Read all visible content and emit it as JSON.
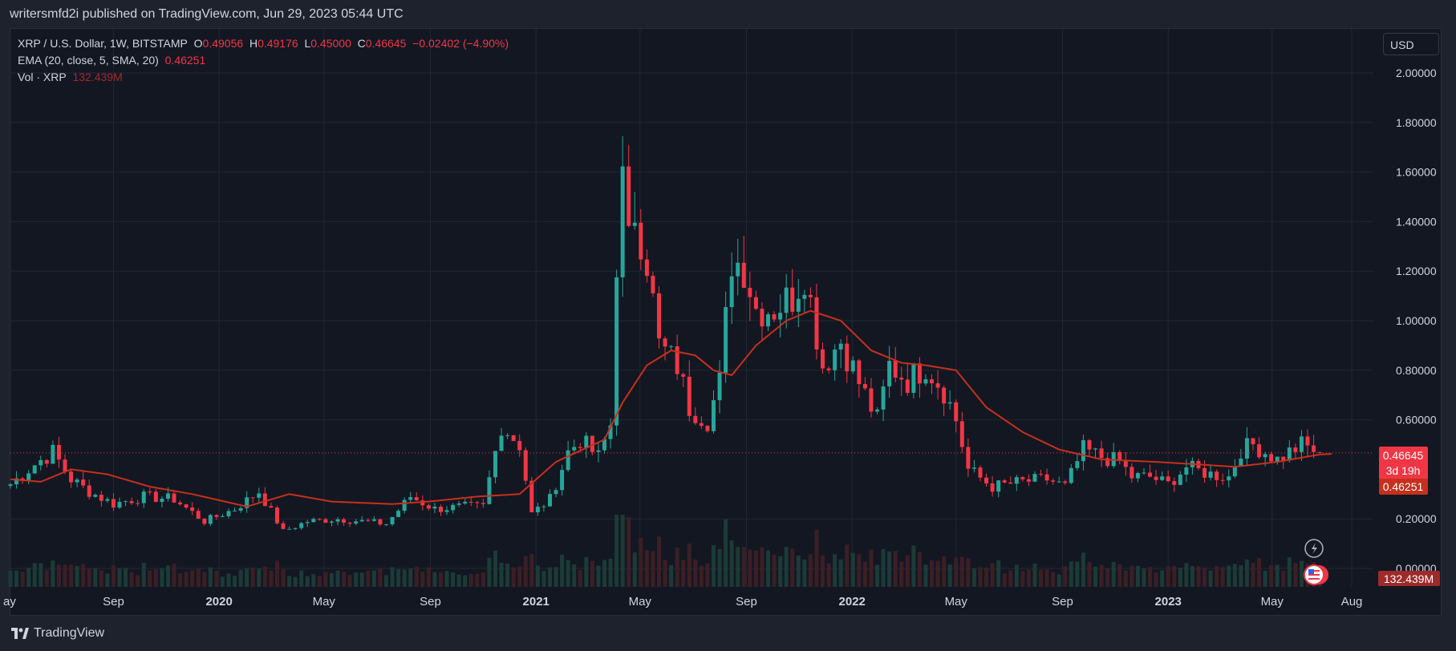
{
  "header": {
    "published": "writersmfd2i published on TradingView.com, Jun 29, 2023 05:44 UTC"
  },
  "legend": {
    "symbol": "XRP / U.S. Dollar, 1W, BITSTAMP",
    "o_label": "O",
    "o_value": "0.49056",
    "h_label": "H",
    "h_value": "0.49176",
    "l_label": "L",
    "l_value": "0.45000",
    "c_label": "C",
    "c_value": "0.46645",
    "change": "−0.02402 (−4.90%)",
    "ema_label": "EMA (20, close, 5, SMA, 20)",
    "ema_value": "0.46251",
    "vol_label": "Vol · XRP",
    "vol_value": "132.439M"
  },
  "currency_button": "USD",
  "badges": {
    "price": "0.46645",
    "countdown": "3d 19h",
    "ema": "0.46251",
    "volume": "132.439M"
  },
  "footer": {
    "brand": "TradingView"
  },
  "colors": {
    "up": "#26a69a",
    "down": "#f23645",
    "ema": "#c6301c",
    "background": "#131722"
  },
  "chart_data": {
    "type": "candlestick",
    "symbol": "XRP / U.S. Dollar",
    "interval": "1W",
    "exchange": "BITSTAMP",
    "ylim": [
      0,
      2.0
    ],
    "y_ticks": [
      "2.00000",
      "1.80000",
      "1.60000",
      "1.40000",
      "1.20000",
      "1.00000",
      "0.80000",
      "0.60000",
      "0.20000",
      "0.00000"
    ],
    "x_ticks": [
      "ay",
      "Sep",
      "2020",
      "May",
      "Sep",
      "2021",
      "May",
      "Sep",
      "2022",
      "May",
      "Sep",
      "2023",
      "May",
      "Aug"
    ],
    "x_range": [
      "2019-05-05",
      "2023-08-13"
    ],
    "last_price": 0.46645,
    "grid": true,
    "anchors": [
      [
        "2019-05-05",
        0.34
      ],
      [
        "2019-06-02",
        0.42
      ],
      [
        "2019-06-23",
        0.47
      ],
      [
        "2019-07-14",
        0.36
      ],
      [
        "2019-08-04",
        0.31
      ],
      [
        "2019-09-01",
        0.26
      ],
      [
        "2019-10-06",
        0.29
      ],
      [
        "2019-11-10",
        0.28
      ],
      [
        "2019-12-15",
        0.19
      ],
      [
        "2020-01-19",
        0.24
      ],
      [
        "2020-02-16",
        0.31
      ],
      [
        "2020-03-15",
        0.15
      ],
      [
        "2020-04-12",
        0.19
      ],
      [
        "2020-05-17",
        0.2
      ],
      [
        "2020-06-14",
        0.19
      ],
      [
        "2020-07-12",
        0.18
      ],
      [
        "2020-08-09",
        0.29
      ],
      [
        "2020-09-06",
        0.24
      ],
      [
        "2020-10-11",
        0.25
      ],
      [
        "2020-11-01",
        0.25
      ],
      [
        "2020-11-22",
        0.58
      ],
      [
        "2020-12-13",
        0.5
      ],
      [
        "2020-12-27",
        0.22
      ],
      [
        "2021-01-17",
        0.28
      ],
      [
        "2021-02-07",
        0.47
      ],
      [
        "2021-02-21",
        0.52
      ],
      [
        "2021-03-14",
        0.45
      ],
      [
        "2021-03-28",
        0.58
      ],
      [
        "2021-04-04",
        1.25
      ],
      [
        "2021-04-11",
        1.55
      ],
      [
        "2021-04-18",
        1.3
      ],
      [
        "2021-04-25",
        1.45
      ],
      [
        "2021-05-09",
        1.25
      ],
      [
        "2021-05-23",
        0.9
      ],
      [
        "2021-06-13",
        0.82
      ],
      [
        "2021-06-27",
        0.65
      ],
      [
        "2021-07-18",
        0.6
      ],
      [
        "2021-08-01",
        0.75
      ],
      [
        "2021-08-15",
        1.25
      ],
      [
        "2021-08-29",
        1.22
      ],
      [
        "2021-09-12",
        1.05
      ],
      [
        "2021-10-03",
        1.05
      ],
      [
        "2021-10-24",
        1.1
      ],
      [
        "2021-11-07",
        1.2
      ],
      [
        "2021-11-28",
        0.82
      ],
      [
        "2021-12-19",
        0.92
      ],
      [
        "2022-01-09",
        0.75
      ],
      [
        "2022-01-30",
        0.6
      ],
      [
        "2022-02-13",
        0.82
      ],
      [
        "2022-03-06",
        0.76
      ],
      [
        "2022-03-27",
        0.82
      ],
      [
        "2022-04-17",
        0.72
      ],
      [
        "2022-05-01",
        0.6
      ],
      [
        "2022-05-15",
        0.4
      ],
      [
        "2022-06-12",
        0.33
      ],
      [
        "2022-07-17",
        0.35
      ],
      [
        "2022-08-14",
        0.36
      ],
      [
        "2022-09-04",
        0.33
      ],
      [
        "2022-09-25",
        0.48
      ],
      [
        "2022-10-16",
        0.45
      ],
      [
        "2022-11-06",
        0.43
      ],
      [
        "2022-11-20",
        0.37
      ],
      [
        "2022-12-11",
        0.37
      ],
      [
        "2023-01-01",
        0.34
      ],
      [
        "2023-01-22",
        0.41
      ],
      [
        "2023-02-19",
        0.38
      ],
      [
        "2023-03-12",
        0.37
      ],
      [
        "2023-03-26",
        0.48
      ],
      [
        "2023-04-09",
        0.5
      ],
      [
        "2023-05-07",
        0.44
      ],
      [
        "2023-06-04",
        0.5
      ],
      [
        "2023-06-25",
        0.46645
      ]
    ],
    "ema": {
      "name": "EMA (20, close, 5, SMA, 20)",
      "points": [
        [
          "2019-05-05",
          0.36
        ],
        [
          "2019-06-09",
          0.35
        ],
        [
          "2019-07-14",
          0.4
        ],
        [
          "2019-08-25",
          0.38
        ],
        [
          "2019-10-13",
          0.33
        ],
        [
          "2019-12-01",
          0.3
        ],
        [
          "2020-02-02",
          0.25
        ],
        [
          "2020-03-22",
          0.3
        ],
        [
          "2020-05-10",
          0.27
        ],
        [
          "2020-07-19",
          0.26
        ],
        [
          "2020-08-30",
          0.27
        ],
        [
          "2020-10-25",
          0.29
        ],
        [
          "2020-12-13",
          0.3
        ],
        [
          "2021-01-24",
          0.43
        ],
        [
          "2021-03-21",
          0.52
        ],
        [
          "2021-04-11",
          0.67
        ],
        [
          "2021-05-09",
          0.82
        ],
        [
          "2021-06-06",
          0.88
        ],
        [
          "2021-07-04",
          0.86
        ],
        [
          "2021-07-25",
          0.8
        ],
        [
          "2021-08-15",
          0.78
        ],
        [
          "2021-09-12",
          0.9
        ],
        [
          "2021-10-17",
          1.0
        ],
        [
          "2021-11-14",
          1.04
        ],
        [
          "2021-12-19",
          1.0
        ],
        [
          "2022-01-23",
          0.88
        ],
        [
          "2022-02-27",
          0.83
        ],
        [
          "2022-03-27",
          0.82
        ],
        [
          "2022-05-01",
          0.8
        ],
        [
          "2022-06-05",
          0.65
        ],
        [
          "2022-07-17",
          0.55
        ],
        [
          "2022-08-28",
          0.48
        ],
        [
          "2022-10-16",
          0.44
        ],
        [
          "2022-12-18",
          0.43
        ],
        [
          "2023-02-05",
          0.42
        ],
        [
          "2023-03-19",
          0.41
        ],
        [
          "2023-05-07",
          0.43
        ],
        [
          "2023-06-25",
          0.46
        ],
        [
          "2023-07-09",
          0.4625
        ]
      ]
    }
  }
}
